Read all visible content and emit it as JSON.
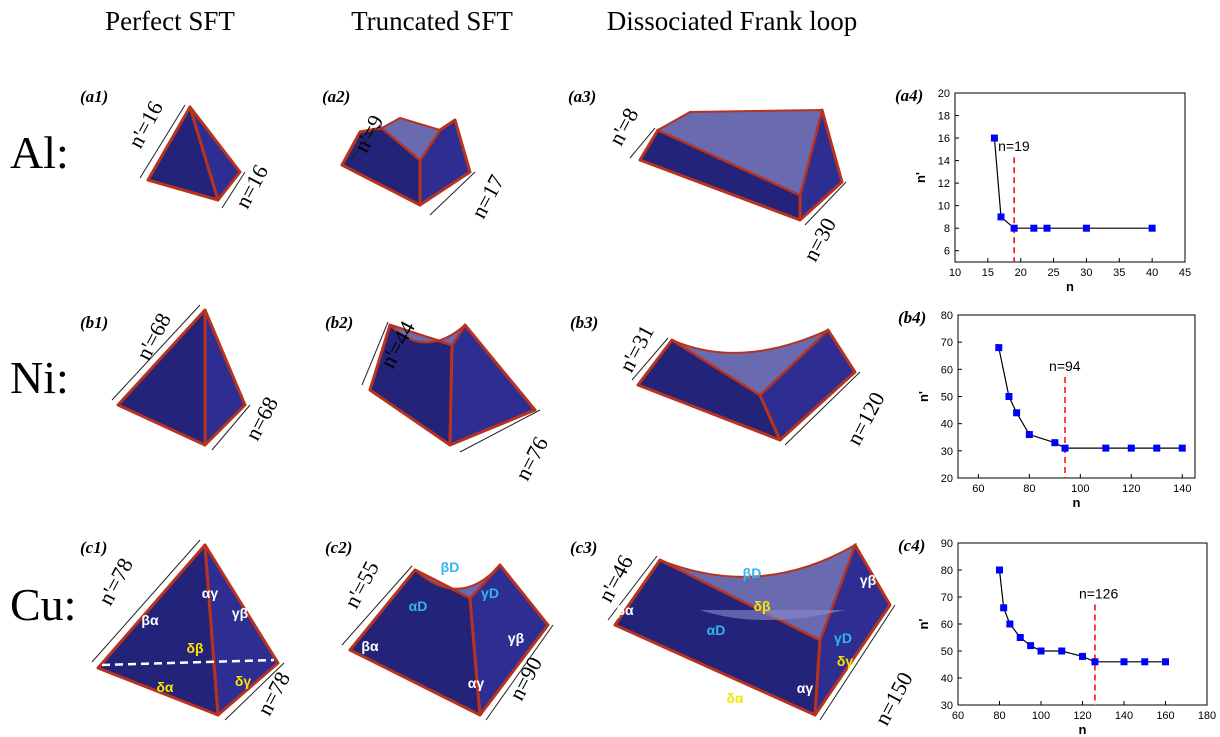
{
  "columns": [
    "Perfect SFT",
    "Truncated SFT",
    "Dissociated Frank loop"
  ],
  "rows": [
    "Al:",
    "Ni:",
    "Cu:"
  ],
  "panels": [
    {
      "label": "(a1)",
      "n_prime": "n'=16",
      "n": "n=16"
    },
    {
      "label": "(a2)",
      "n_prime": "n'=9",
      "n": "n=17"
    },
    {
      "label": "(a3)",
      "n_prime": "n'=8",
      "n": "n=30"
    },
    {
      "label": "(b1)",
      "n_prime": "n'=68",
      "n": "n=68"
    },
    {
      "label": "(b2)",
      "n_prime": "n'=44",
      "n": "n=76"
    },
    {
      "label": "(b3)",
      "n_prime": "n'=31",
      "n": "n=120"
    },
    {
      "label": "(c1)",
      "n_prime": "n'=78",
      "n": "n=78",
      "faces": [
        "βα",
        "αγ",
        "γβ",
        "δβ",
        "δα",
        "δγ"
      ]
    },
    {
      "label": "(c2)",
      "n_prime": "n'=55",
      "n": "n=90",
      "faces": [
        "βD",
        "αD",
        "γD",
        "βα",
        "γβ",
        "αγ"
      ]
    },
    {
      "label": "(c3)",
      "n_prime": "n'=46",
      "n": "n=150",
      "faces": [
        "βD",
        "βα",
        "δβ",
        "γβ",
        "γD",
        "αD",
        "δγ",
        "αγ",
        "δα"
      ]
    }
  ],
  "chart_data": [
    {
      "type": "line",
      "panel_label": "(a4)",
      "xlabel": "n",
      "ylabel": "n'",
      "x": [
        16,
        17,
        19,
        22,
        24,
        30,
        40
      ],
      "values": [
        16,
        9,
        8,
        8,
        8,
        8,
        8
      ],
      "color": "#0000ff",
      "line_color": "#000000",
      "xlim": [
        10,
        45
      ],
      "xticks": [
        10,
        15,
        20,
        25,
        30,
        35,
        40,
        45
      ],
      "ylim": [
        5,
        20
      ],
      "yticks": [
        6,
        8,
        10,
        12,
        14,
        16,
        18,
        20
      ],
      "vline": {
        "x": 19,
        "label": "n=19",
        "color": "#ff0000"
      }
    },
    {
      "type": "line",
      "panel_label": "(b4)",
      "xlabel": "n",
      "ylabel": "n'",
      "x": [
        68,
        72,
        75,
        80,
        90,
        94,
        110,
        120,
        130,
        140
      ],
      "values": [
        68,
        50,
        44,
        36,
        33,
        31,
        31,
        31,
        31,
        31
      ],
      "color": "#0000ff",
      "line_color": "#000000",
      "xlim": [
        52,
        145
      ],
      "xticks": [
        60,
        80,
        100,
        120,
        140
      ],
      "ylim": [
        20,
        80
      ],
      "yticks": [
        20,
        30,
        40,
        50,
        60,
        70,
        80
      ],
      "vline": {
        "x": 94,
        "label": "n=94",
        "color": "#ff0000"
      }
    },
    {
      "type": "line",
      "panel_label": "(c4)",
      "xlabel": "n",
      "ylabel": "n'",
      "x": [
        80,
        82,
        85,
        90,
        95,
        100,
        110,
        120,
        126,
        140,
        150,
        160
      ],
      "values": [
        80,
        66,
        60,
        55,
        52,
        50,
        50,
        48,
        46,
        46,
        46,
        46
      ],
      "color": "#0000ff",
      "line_color": "#000000",
      "xlim": [
        60,
        180
      ],
      "xticks": [
        60,
        80,
        100,
        120,
        140,
        160,
        180
      ],
      "ylim": [
        30,
        90
      ],
      "yticks": [
        30,
        40,
        50,
        60,
        70,
        80,
        90
      ],
      "vline": {
        "x": 126,
        "label": "n=126",
        "color": "#ff0000"
      }
    }
  ]
}
